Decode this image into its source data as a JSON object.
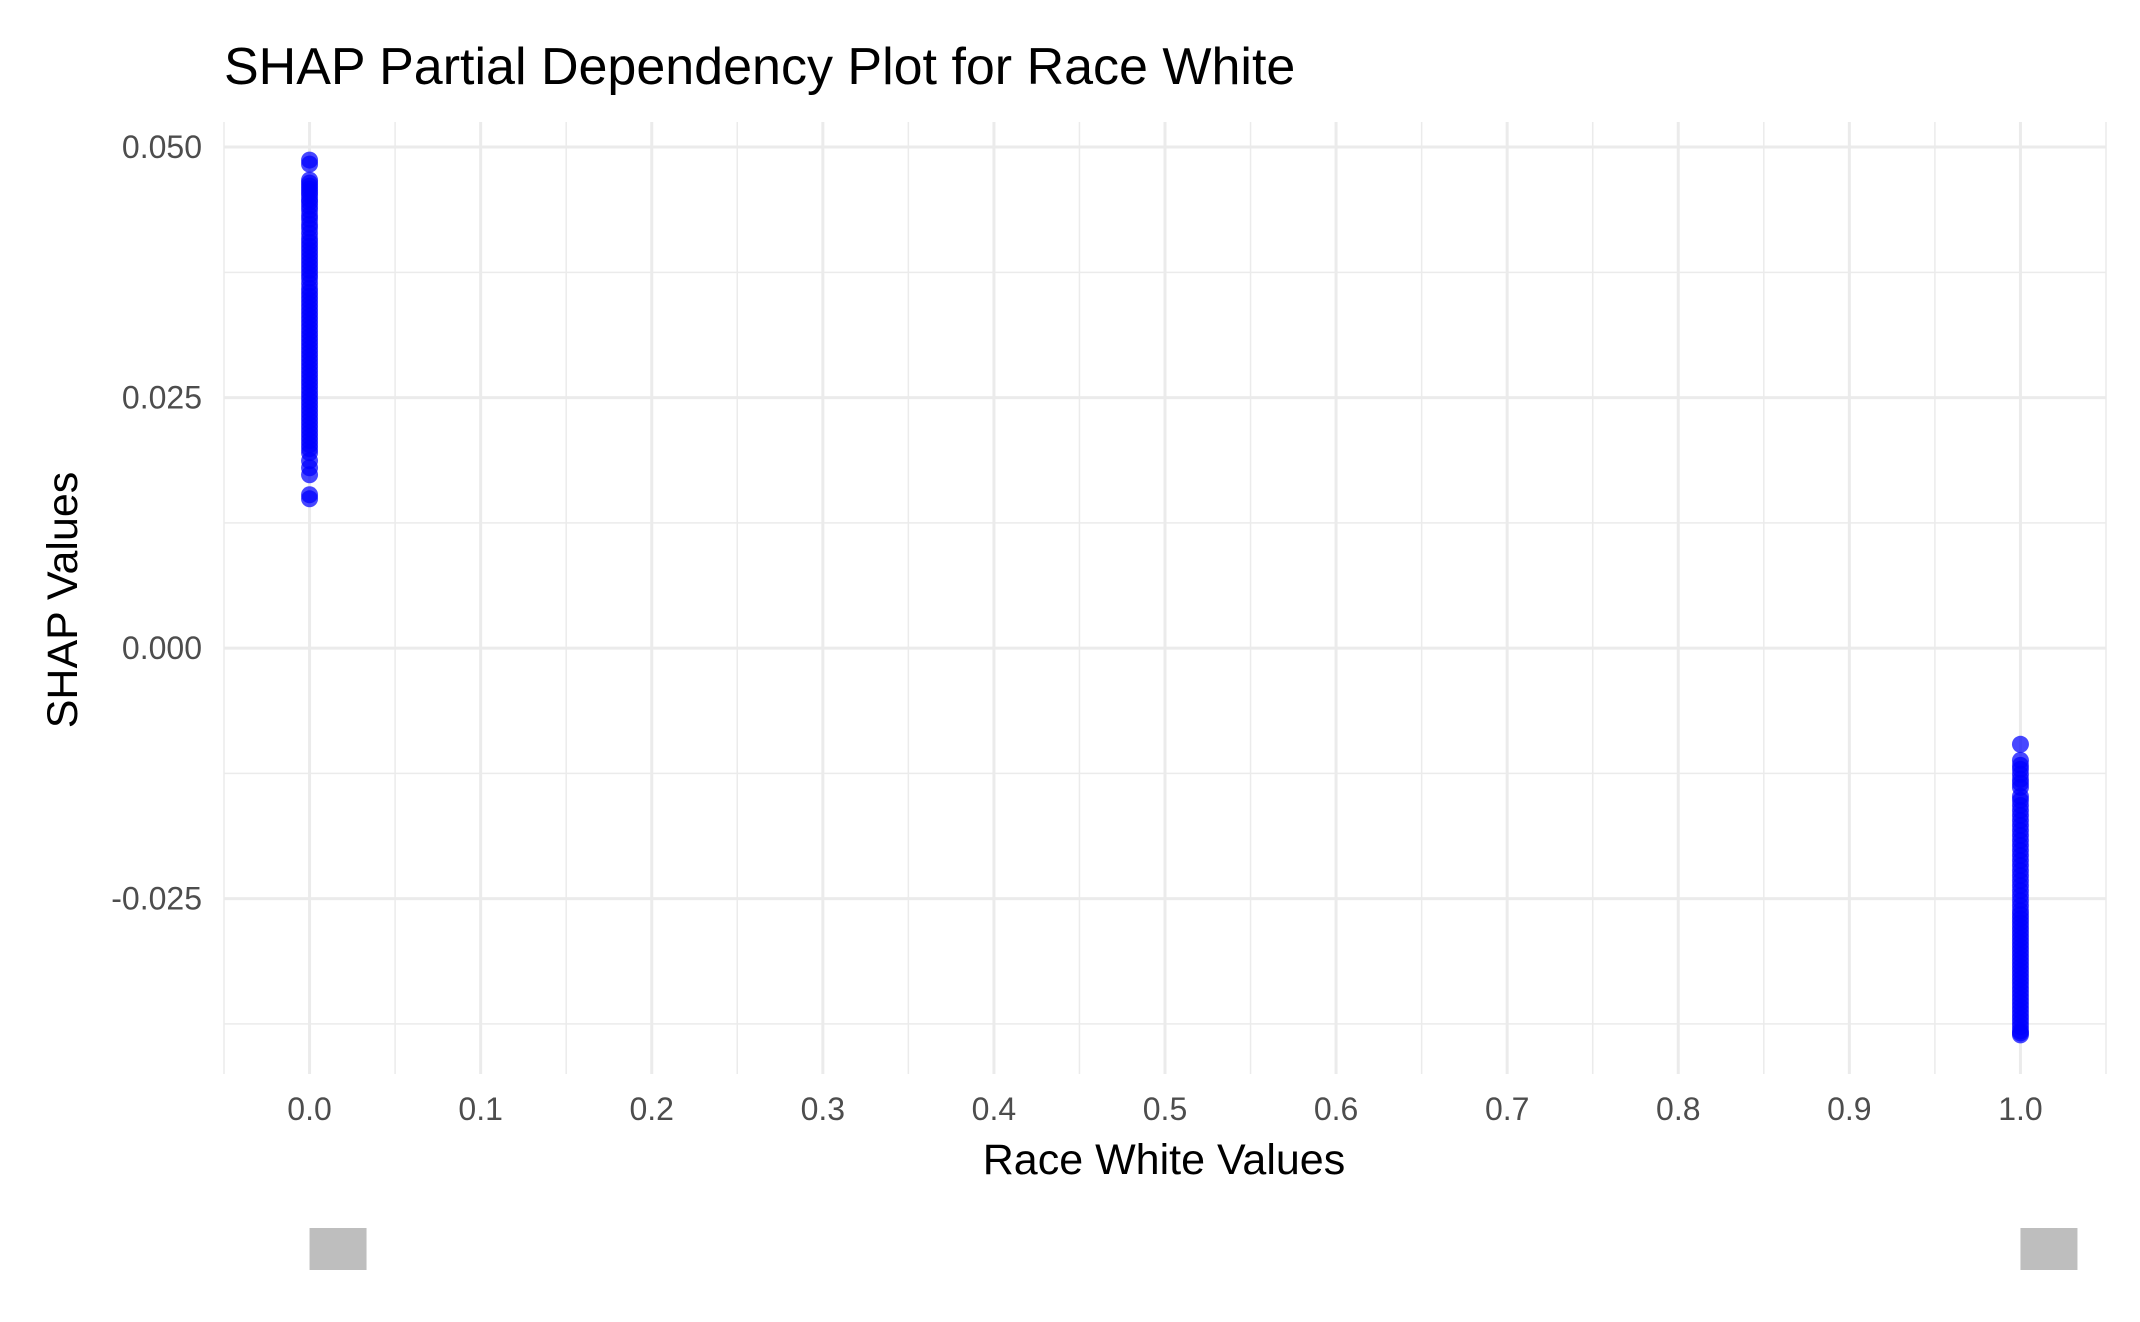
{
  "chart_data": {
    "type": "scatter",
    "title": "SHAP Partial Dependency Plot for Race White",
    "xlabel": "Race White Values",
    "ylabel": "SHAP Values",
    "xlim": [
      -0.05,
      1.05
    ],
    "ylim": [
      -0.0425,
      0.0525
    ],
    "x_ticks": [
      0.0,
      0.1,
      0.2,
      0.3,
      0.4,
      0.5,
      0.6,
      0.7,
      0.8,
      0.9,
      1.0
    ],
    "x_tick_labels": [
      "0.0",
      "0.1",
      "0.2",
      "0.3",
      "0.4",
      "0.5",
      "0.6",
      "0.7",
      "0.8",
      "0.9",
      "1.0"
    ],
    "y_ticks": [
      -0.025,
      0.0,
      0.025,
      0.05
    ],
    "y_tick_labels": [
      "-0.025",
      "0.000",
      "0.025",
      "0.050"
    ],
    "grid": true,
    "point_color": "#0000ff",
    "rug_color": "#bebebe",
    "series": [
      {
        "x": [
          0,
          0,
          0,
          0,
          0,
          0,
          0,
          0,
          0,
          0,
          0,
          0,
          0,
          0,
          0,
          0,
          0,
          0,
          0,
          0,
          0,
          0,
          0,
          0,
          0,
          0,
          0,
          0,
          0,
          0,
          0,
          0,
          0,
          0,
          0,
          0,
          0,
          0,
          0,
          0,
          0,
          0,
          0,
          0,
          0,
          0,
          0,
          0,
          0,
          0,
          0,
          0,
          0,
          0,
          0,
          0,
          0,
          0,
          0,
          0,
          0,
          0,
          0,
          0,
          0,
          0,
          0,
          0,
          0,
          0,
          0,
          0,
          0,
          0,
          0,
          0
        ],
        "y": [
          0.0487,
          0.0483,
          0.0467,
          0.0464,
          0.0461,
          0.0458,
          0.0455,
          0.0452,
          0.0448,
          0.0445,
          0.0441,
          0.0437,
          0.0432,
          0.0428,
          0.0423,
          0.0419,
          0.0414,
          0.0409,
          0.0405,
          0.0401,
          0.0397,
          0.0393,
          0.0389,
          0.0385,
          0.0381,
          0.0377,
          0.0373,
          0.0369,
          0.0364,
          0.0359,
          0.0355,
          0.0351,
          0.0347,
          0.0343,
          0.0339,
          0.0335,
          0.0331,
          0.0327,
          0.0323,
          0.0319,
          0.0315,
          0.0311,
          0.0307,
          0.0303,
          0.0299,
          0.0295,
          0.0291,
          0.0287,
          0.0283,
          0.0279,
          0.0275,
          0.0271,
          0.0267,
          0.0263,
          0.0259,
          0.0255,
          0.0251,
          0.0247,
          0.0243,
          0.0239,
          0.0235,
          0.0231,
          0.0227,
          0.0223,
          0.0219,
          0.0215,
          0.0211,
          0.0207,
          0.0203,
          0.0199,
          0.0195,
          0.0187,
          0.018,
          0.0173,
          0.0153,
          0.0149
        ]
      },
      {
        "x": [
          1,
          1,
          1,
          1,
          1,
          1,
          1,
          1,
          1,
          1,
          1,
          1,
          1,
          1,
          1,
          1,
          1,
          1,
          1,
          1,
          1,
          1,
          1,
          1,
          1,
          1,
          1,
          1,
          1,
          1,
          1,
          1,
          1,
          1,
          1,
          1,
          1,
          1,
          1,
          1,
          1,
          1,
          1,
          1,
          1,
          1,
          1,
          1,
          1,
          1,
          1,
          1,
          1,
          1,
          1,
          1,
          1,
          1,
          1,
          1,
          1,
          1,
          1,
          1
        ],
        "y": [
          -0.0096,
          -0.0112,
          -0.0117,
          -0.0121,
          -0.0126,
          -0.0131,
          -0.0135,
          -0.0139,
          -0.0148,
          -0.0152,
          -0.0157,
          -0.0162,
          -0.0167,
          -0.0172,
          -0.0177,
          -0.0182,
          -0.0187,
          -0.0192,
          -0.0197,
          -0.0202,
          -0.0207,
          -0.0212,
          -0.0217,
          -0.0222,
          -0.0227,
          -0.0232,
          -0.0237,
          -0.0242,
          -0.0247,
          -0.0252,
          -0.0257,
          -0.0262,
          -0.0266,
          -0.027,
          -0.0274,
          -0.0278,
          -0.0282,
          -0.0286,
          -0.029,
          -0.0294,
          -0.0298,
          -0.0302,
          -0.0306,
          -0.031,
          -0.0314,
          -0.0318,
          -0.0322,
          -0.0326,
          -0.033,
          -0.0334,
          -0.0338,
          -0.0342,
          -0.0346,
          -0.035,
          -0.0354,
          -0.0358,
          -0.0362,
          -0.0366,
          -0.037,
          -0.0374,
          -0.0378,
          -0.0382,
          -0.0384,
          -0.0386
        ]
      }
    ],
    "rug": [
      0.0,
      1.0
    ]
  }
}
